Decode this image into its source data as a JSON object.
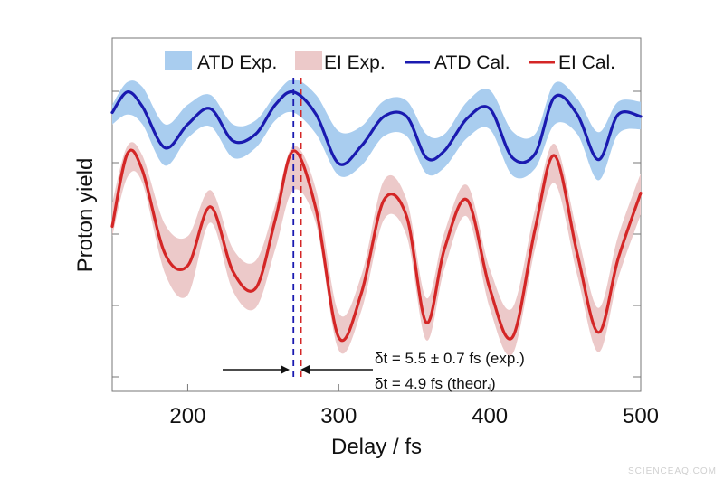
{
  "chart_data": {
    "type": "line",
    "xlabel": "Delay / fs",
    "ylabel": "Proton yield",
    "xlim": [
      150,
      500
    ],
    "x_ticks": [
      200,
      300,
      400,
      500
    ],
    "grid": false,
    "legend_position": "top-right",
    "x": [
      150,
      160,
      170,
      185,
      200,
      215,
      230,
      245,
      258,
      270,
      285,
      300,
      315,
      330,
      345,
      358,
      370,
      385,
      400,
      415,
      430,
      443,
      458,
      472,
      485,
      500
    ],
    "series": [
      {
        "name": "ATD Exp.",
        "style": "band",
        "color": "#a9cdef",
        "upper": [
          2.92,
          3.15,
          3.1,
          2.72,
          2.92,
          3.02,
          2.72,
          2.76,
          3.02,
          3.18,
          3.02,
          2.65,
          2.7,
          2.96,
          2.96,
          2.62,
          2.62,
          2.95,
          3.07,
          2.65,
          2.62,
          3.14,
          2.98,
          2.64,
          2.95,
          2.95
        ],
        "lower": [
          2.72,
          2.82,
          2.72,
          2.3,
          2.58,
          2.7,
          2.38,
          2.48,
          2.76,
          2.84,
          2.62,
          2.2,
          2.3,
          2.6,
          2.6,
          2.22,
          2.28,
          2.58,
          2.67,
          2.2,
          2.27,
          2.72,
          2.62,
          2.15,
          2.62,
          2.67
        ]
      },
      {
        "name": "EI Exp.",
        "style": "band",
        "color": "#ecc9c9",
        "upper": [
          1.92,
          2.5,
          2.4,
          1.7,
          1.58,
          2.05,
          1.45,
          1.33,
          1.9,
          2.5,
          2.05,
          0.8,
          1.18,
          2.15,
          1.95,
          0.95,
          1.62,
          2.1,
          1.25,
          0.85,
          1.85,
          2.52,
          1.62,
          0.85,
          1.58,
          2.22
        ],
        "lower": [
          1.58,
          2.18,
          2.12,
          1.2,
          0.98,
          1.72,
          1.02,
          0.85,
          1.45,
          2.05,
          1.7,
          0.42,
          0.82,
          1.75,
          1.58,
          0.52,
          1.25,
          1.78,
          0.85,
          0.38,
          1.45,
          2.12,
          1.18,
          0.4,
          1.15,
          1.8
        ]
      },
      {
        "name": "ATD Cal.",
        "style": "line",
        "color": "#1a1ab0",
        "values": [
          2.84,
          3.05,
          2.9,
          2.48,
          2.72,
          2.88,
          2.55,
          2.62,
          2.92,
          3.05,
          2.82,
          2.32,
          2.5,
          2.8,
          2.8,
          2.38,
          2.45,
          2.78,
          2.88,
          2.38,
          2.42,
          3.0,
          2.82,
          2.36,
          2.82,
          2.8
        ]
      },
      {
        "name": "EI Cal.",
        "style": "line",
        "color": "#d42626",
        "values": [
          1.68,
          2.42,
          2.25,
          1.4,
          1.28,
          1.88,
          1.22,
          1.05,
          1.75,
          2.45,
          1.85,
          0.55,
          1.0,
          1.95,
          1.78,
          0.7,
          1.45,
          1.95,
          1.05,
          0.55,
          1.65,
          2.4,
          1.4,
          0.6,
          1.35,
          2.02
        ]
      }
    ],
    "vlines": [
      {
        "x": 270,
        "color": "#1a1ab0",
        "style": "dashed"
      },
      {
        "x": 275,
        "color": "#d42626",
        "style": "dashed"
      }
    ],
    "annotations": [
      "δt = 5.5 ± 0.7 fs (exp.)",
      "δt = 4.9 fs (theor.)"
    ]
  },
  "watermark": "SCIENCEAQ.COM"
}
